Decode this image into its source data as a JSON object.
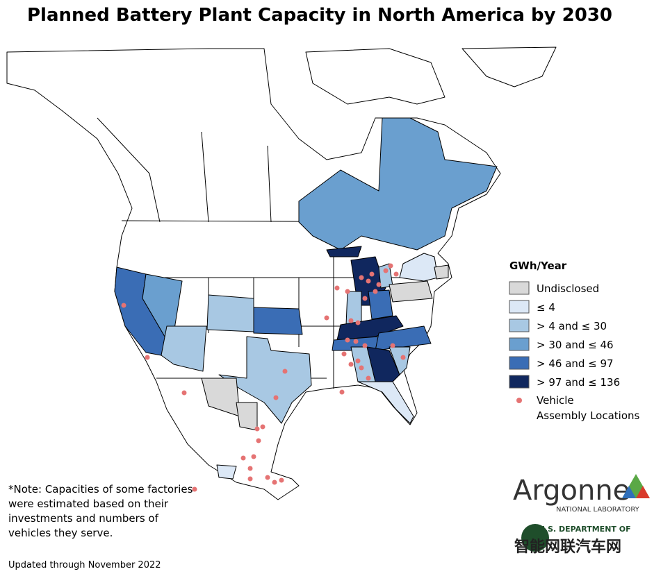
{
  "title": "Planned Battery Plant Capacity in North America by 2030",
  "legend": {
    "title": "GWh/Year",
    "items": [
      {
        "label": "Undisclosed",
        "color": "#d9d9d9"
      },
      {
        "label": "≤ 4",
        "color": "#dce8f6"
      },
      {
        "label": "> 4 and ≤ 30",
        "color": "#a8c8e3"
      },
      {
        "label": "> 30 and ≤ 46",
        "color": "#6a9fcf"
      },
      {
        "label": "> 46 and ≤ 97",
        "color": "#3a6db5"
      },
      {
        "label": "> 97 and ≤ 136",
        "color": "#10275e"
      }
    ],
    "marker": {
      "lines": [
        "Vehicle",
        "Assembly Locations"
      ],
      "color": "#e57373"
    }
  },
  "note": [
    "*Note: Capacities of some factories",
    "were estimated based on their",
    "investments and numbers of",
    "vehicles they serve."
  ],
  "updated": "Updated through November 2022",
  "logo": {
    "name": "Argonne",
    "subtitle": "NATIONAL LABORATORY",
    "doe": "U.S. DEPARTMENT OF",
    "watermark": "智能网联汽车网"
  }
}
